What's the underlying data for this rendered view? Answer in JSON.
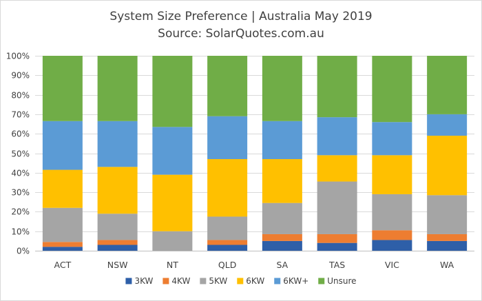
{
  "chart_data": {
    "type": "bar",
    "stacked": true,
    "title": "System Size Preference  | Australia May 2019",
    "subtitle": "Source: SolarQuotes.com.au",
    "xlabel": "",
    "ylabel": "",
    "ylim": [
      0,
      100
    ],
    "y_ticks": [
      "0%",
      "10%",
      "20%",
      "30%",
      "40%",
      "50%",
      "60%",
      "70%",
      "80%",
      "90%",
      "100%"
    ],
    "grid": true,
    "legend_position": "bottom",
    "categories": [
      "ACT",
      "NSW",
      "NT",
      "QLD",
      "SA",
      "TAS",
      "VIC",
      "WA"
    ],
    "series": [
      {
        "name": "3KW",
        "color": "#2e5fa8",
        "values": [
          2,
          3,
          0,
          3,
          5,
          4,
          5.5,
          5
        ]
      },
      {
        "name": "4KW",
        "color": "#ed7d31",
        "values": [
          2.5,
          2.5,
          0,
          2.5,
          3.5,
          4.5,
          5,
          3.5
        ]
      },
      {
        "name": "5KW",
        "color": "#a5a5a5",
        "values": [
          17.5,
          13.5,
          10,
          12,
          16,
          27,
          18.5,
          20
        ]
      },
      {
        "name": "6KW",
        "color": "#ffc000",
        "values": [
          19.5,
          24,
          29,
          29.5,
          22.5,
          13.5,
          20,
          30.5
        ]
      },
      {
        "name": "6KW+",
        "color": "#5b9bd5",
        "values": [
          25,
          23.5,
          24.5,
          22,
          19.5,
          19.5,
          17,
          11
        ]
      },
      {
        "name": "Unsure",
        "color": "#70ad47",
        "values": [
          33.5,
          33.5,
          36.5,
          31,
          33.5,
          31.5,
          34,
          30
        ]
      }
    ]
  }
}
